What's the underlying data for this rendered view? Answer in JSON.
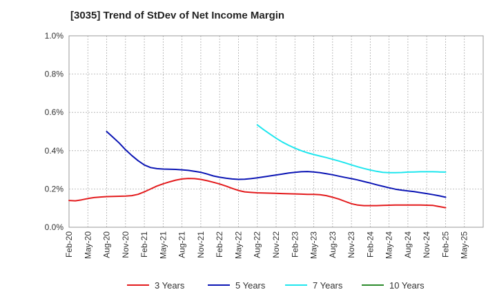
{
  "title": "[3035]  Trend of StDev of Net Income Margin",
  "chart_data": {
    "type": "line",
    "title": "[3035]  Trend of StDev of Net Income Margin",
    "xlabel": "",
    "ylabel": "",
    "ylim": [
      0,
      1.0
    ],
    "y_ticks": [
      "0.0%",
      "0.2%",
      "0.4%",
      "0.6%",
      "0.8%",
      "1.0%"
    ],
    "x_ticks": [
      "Feb-20",
      "May-20",
      "Aug-20",
      "Nov-20",
      "Feb-21",
      "May-21",
      "Aug-21",
      "Nov-21",
      "Feb-22",
      "May-22",
      "Aug-22",
      "Nov-22",
      "Feb-23",
      "May-23",
      "Aug-23",
      "Nov-23",
      "Feb-24",
      "May-24",
      "Aug-24",
      "Nov-24",
      "Feb-25",
      "May-25"
    ],
    "grid": true,
    "legend_position": "bottom",
    "series": [
      {
        "name": "3 Years",
        "color": "#e31a1c",
        "points": [
          [
            "2020-02",
            0.14
          ],
          [
            "2020-03",
            0.138
          ],
          [
            "2020-04",
            0.143
          ],
          [
            "2020-05",
            0.15
          ],
          [
            "2020-06",
            0.155
          ],
          [
            "2020-07",
            0.158
          ],
          [
            "2020-08",
            0.16
          ],
          [
            "2020-09",
            0.161
          ],
          [
            "2020-10",
            0.162
          ],
          [
            "2020-11",
            0.163
          ],
          [
            "2020-12",
            0.165
          ],
          [
            "2021-01",
            0.172
          ],
          [
            "2021-02",
            0.185
          ],
          [
            "2021-03",
            0.2
          ],
          [
            "2021-04",
            0.215
          ],
          [
            "2021-05",
            0.227
          ],
          [
            "2021-06",
            0.237
          ],
          [
            "2021-07",
            0.246
          ],
          [
            "2021-08",
            0.252
          ],
          [
            "2021-09",
            0.255
          ],
          [
            "2021-10",
            0.254
          ],
          [
            "2021-11",
            0.25
          ],
          [
            "2021-12",
            0.243
          ],
          [
            "2022-01",
            0.235
          ],
          [
            "2022-02",
            0.226
          ],
          [
            "2022-03",
            0.215
          ],
          [
            "2022-04",
            0.203
          ],
          [
            "2022-05",
            0.192
          ],
          [
            "2022-06",
            0.185
          ],
          [
            "2022-07",
            0.182
          ],
          [
            "2022-08",
            0.18
          ],
          [
            "2022-09",
            0.179
          ],
          [
            "2022-10",
            0.178
          ],
          [
            "2022-11",
            0.177
          ],
          [
            "2022-12",
            0.176
          ],
          [
            "2023-01",
            0.175
          ],
          [
            "2023-02",
            0.174
          ],
          [
            "2023-03",
            0.173
          ],
          [
            "2023-04",
            0.172
          ],
          [
            "2023-05",
            0.172
          ],
          [
            "2023-06",
            0.17
          ],
          [
            "2023-07",
            0.165
          ],
          [
            "2023-08",
            0.157
          ],
          [
            "2023-09",
            0.147
          ],
          [
            "2023-10",
            0.135
          ],
          [
            "2023-11",
            0.123
          ],
          [
            "2023-12",
            0.116
          ],
          [
            "2024-01",
            0.113
          ],
          [
            "2024-02",
            0.113
          ],
          [
            "2024-03",
            0.113
          ],
          [
            "2024-04",
            0.114
          ],
          [
            "2024-05",
            0.115
          ],
          [
            "2024-06",
            0.116
          ],
          [
            "2024-07",
            0.116
          ],
          [
            "2024-08",
            0.116
          ],
          [
            "2024-09",
            0.116
          ],
          [
            "2024-10",
            0.116
          ],
          [
            "2024-11",
            0.115
          ],
          [
            "2024-12",
            0.114
          ],
          [
            "2025-01",
            0.108
          ],
          [
            "2025-02",
            0.102
          ]
        ]
      },
      {
        "name": "5 Years",
        "color": "#0a14b4",
        "points": [
          [
            "2020-08",
            0.5
          ],
          [
            "2020-09",
            0.47
          ],
          [
            "2020-10",
            0.44
          ],
          [
            "2020-11",
            0.405
          ],
          [
            "2020-12",
            0.375
          ],
          [
            "2021-01",
            0.348
          ],
          [
            "2021-02",
            0.325
          ],
          [
            "2021-03",
            0.312
          ],
          [
            "2021-04",
            0.306
          ],
          [
            "2021-05",
            0.304
          ],
          [
            "2021-06",
            0.303
          ],
          [
            "2021-07",
            0.302
          ],
          [
            "2021-08",
            0.3
          ],
          [
            "2021-09",
            0.297
          ],
          [
            "2021-10",
            0.292
          ],
          [
            "2021-11",
            0.287
          ],
          [
            "2021-12",
            0.278
          ],
          [
            "2022-01",
            0.268
          ],
          [
            "2022-02",
            0.261
          ],
          [
            "2022-03",
            0.256
          ],
          [
            "2022-04",
            0.252
          ],
          [
            "2022-05",
            0.25
          ],
          [
            "2022-06",
            0.251
          ],
          [
            "2022-07",
            0.254
          ],
          [
            "2022-08",
            0.258
          ],
          [
            "2022-09",
            0.263
          ],
          [
            "2022-10",
            0.268
          ],
          [
            "2022-11",
            0.273
          ],
          [
            "2022-12",
            0.278
          ],
          [
            "2023-01",
            0.283
          ],
          [
            "2023-02",
            0.287
          ],
          [
            "2023-03",
            0.29
          ],
          [
            "2023-04",
            0.291
          ],
          [
            "2023-05",
            0.289
          ],
          [
            "2023-06",
            0.285
          ],
          [
            "2023-07",
            0.28
          ],
          [
            "2023-08",
            0.274
          ],
          [
            "2023-09",
            0.267
          ],
          [
            "2023-10",
            0.26
          ],
          [
            "2023-11",
            0.254
          ],
          [
            "2023-12",
            0.247
          ],
          [
            "2024-01",
            0.239
          ],
          [
            "2024-02",
            0.231
          ],
          [
            "2024-03",
            0.222
          ],
          [
            "2024-04",
            0.214
          ],
          [
            "2024-05",
            0.206
          ],
          [
            "2024-06",
            0.199
          ],
          [
            "2024-07",
            0.194
          ],
          [
            "2024-08",
            0.19
          ],
          [
            "2024-09",
            0.186
          ],
          [
            "2024-10",
            0.181
          ],
          [
            "2024-11",
            0.176
          ],
          [
            "2024-12",
            0.17
          ],
          [
            "2025-01",
            0.164
          ],
          [
            "2025-02",
            0.157
          ]
        ]
      },
      {
        "name": "7 Years",
        "color": "#1ee6ee",
        "points": [
          [
            "2022-08",
            0.535
          ],
          [
            "2022-09",
            0.51
          ],
          [
            "2022-10",
            0.487
          ],
          [
            "2022-11",
            0.465
          ],
          [
            "2022-12",
            0.445
          ],
          [
            "2023-01",
            0.428
          ],
          [
            "2023-02",
            0.413
          ],
          [
            "2023-03",
            0.4
          ],
          [
            "2023-04",
            0.389
          ],
          [
            "2023-05",
            0.38
          ],
          [
            "2023-06",
            0.372
          ],
          [
            "2023-07",
            0.364
          ],
          [
            "2023-08",
            0.355
          ],
          [
            "2023-09",
            0.346
          ],
          [
            "2023-10",
            0.336
          ],
          [
            "2023-11",
            0.326
          ],
          [
            "2023-12",
            0.316
          ],
          [
            "2024-01",
            0.307
          ],
          [
            "2024-02",
            0.299
          ],
          [
            "2024-03",
            0.292
          ],
          [
            "2024-04",
            0.287
          ],
          [
            "2024-05",
            0.285
          ],
          [
            "2024-06",
            0.285
          ],
          [
            "2024-07",
            0.286
          ],
          [
            "2024-08",
            0.288
          ],
          [
            "2024-09",
            0.289
          ],
          [
            "2024-10",
            0.29
          ],
          [
            "2024-11",
            0.29
          ],
          [
            "2024-12",
            0.29
          ],
          [
            "2025-01",
            0.289
          ],
          [
            "2025-02",
            0.288
          ]
        ]
      },
      {
        "name": "10 Years",
        "color": "#2a8a2a",
        "points": []
      }
    ]
  }
}
